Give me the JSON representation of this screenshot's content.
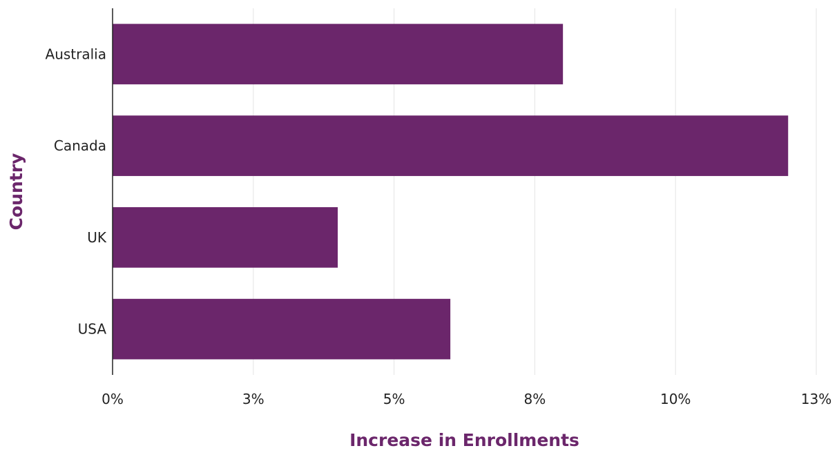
{
  "chart_data": {
    "type": "bar",
    "orientation": "horizontal",
    "categories": [
      "Australia",
      "Canada",
      "UK",
      "USA"
    ],
    "values": [
      8.0,
      12.0,
      4.0,
      6.0
    ],
    "xlabel": "Increase in Enrollments",
    "ylabel": "Country",
    "xlim": [
      0,
      12.5
    ],
    "xticks": [
      0,
      2.5,
      5,
      7.5,
      10,
      12.5
    ],
    "xtick_labels": [
      "0%",
      "3%",
      "5%",
      "8%",
      "10%",
      "13%"
    ],
    "grid": "vertical",
    "legend": "none",
    "colors": {
      "bar": "#6b266b",
      "axis_title": "#6b266b",
      "grid": "#e3e3e3",
      "axis_line": "#222222"
    }
  }
}
